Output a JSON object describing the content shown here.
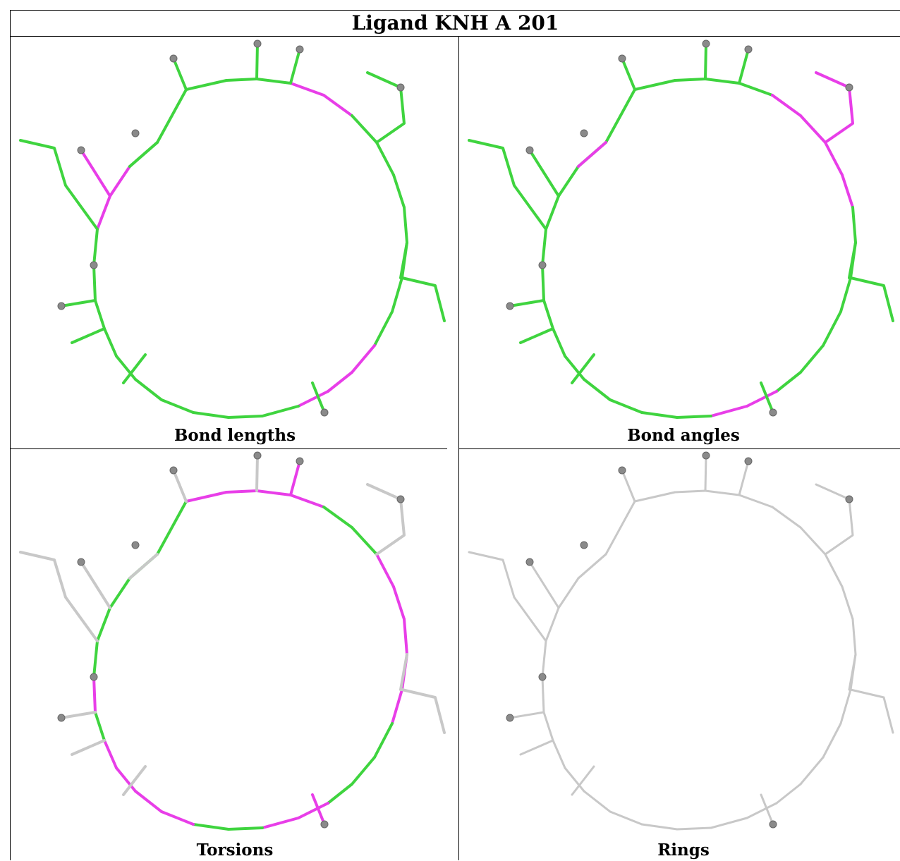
{
  "title": "Ligand KNH A 201",
  "colors": {
    "ok": "#3fd43f",
    "outlier": "#e83ee8",
    "neutral": "#c8c8c8",
    "atom": "#8a8a8a"
  },
  "panels": [
    {
      "caption": "Bond lengths",
      "outlier_ring": [
        3,
        4,
        12,
        13,
        14,
        25,
        26
      ],
      "outlier_spokes": [
        7
      ],
      "mode": "color"
    },
    {
      "caption": "Bond angles",
      "outlier_ring": [
        4,
        5,
        6,
        7,
        14,
        15
      ],
      "outlier_spokes": [
        3,
        8
      ],
      "mode": "color"
    },
    {
      "caption": "Torsions",
      "outlier_ring": [
        0,
        1,
        2,
        3,
        6,
        7,
        8,
        9,
        10,
        14,
        15,
        18,
        19,
        20,
        21,
        23
      ],
      "outlier_spokes": [
        2,
        6
      ],
      "mode": "torsion"
    },
    {
      "caption": "Rings",
      "outlier_ring": [],
      "outlier_spokes": [],
      "mode": "gray"
    }
  ]
}
